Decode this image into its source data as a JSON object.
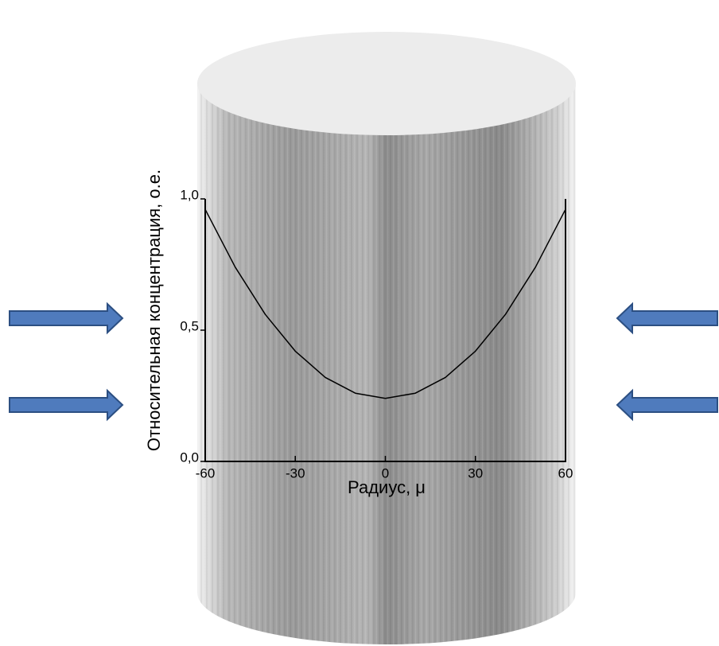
{
  "chart_data": {
    "type": "line",
    "x_label": "Радиус, μ",
    "y_label": "Относительная концентрация, о.е.",
    "x": [
      -60,
      -50,
      -40,
      -30,
      -20,
      -10,
      0,
      10,
      20,
      30,
      40,
      50,
      60
    ],
    "values": [
      0.96,
      0.74,
      0.56,
      0.42,
      0.32,
      0.26,
      0.24,
      0.26,
      0.32,
      0.42,
      0.56,
      0.74,
      0.96
    ],
    "color": "#000000",
    "xlim": [
      -60,
      60
    ],
    "xticks": [
      -60,
      -30,
      0,
      30,
      60
    ],
    "ylim": [
      0,
      1.0
    ],
    "yticks": [
      {
        "value": 0,
        "label": "0,0"
      },
      {
        "value": 0.5,
        "label": "0,5"
      },
      {
        "value": 1.0,
        "label": "1,0"
      }
    ]
  }
}
